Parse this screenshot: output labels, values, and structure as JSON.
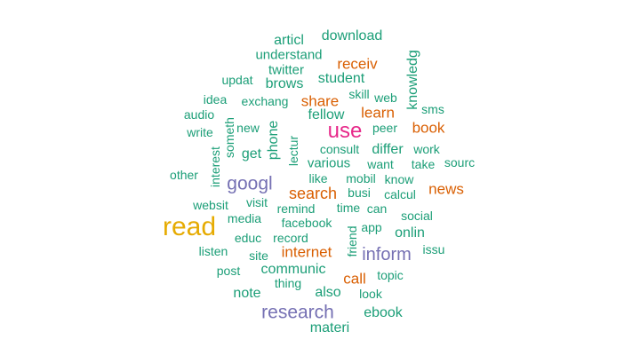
{
  "colors": {
    "teal": "#1b9e77",
    "orange": "#d95f02",
    "purple": "#7570b3",
    "magenta": "#e7298a",
    "green": "#66a61e",
    "gold": "#e6ab02"
  },
  "words": [
    {
      "text": "read",
      "color": "#e6ab02"
    },
    {
      "text": "use",
      "color": "#e7298a"
    },
    {
      "text": "googl",
      "color": "#7570b3"
    },
    {
      "text": "research",
      "color": "#7570b3"
    },
    {
      "text": "inform",
      "color": "#7570b3"
    },
    {
      "text": "search",
      "color": "#d95f02"
    },
    {
      "text": "internet",
      "color": "#d95f02"
    },
    {
      "text": "news",
      "color": "#d95f02"
    },
    {
      "text": "book",
      "color": "#d95f02"
    },
    {
      "text": "receiv",
      "color": "#d95f02"
    },
    {
      "text": "share",
      "color": "#d95f02"
    },
    {
      "text": "learn",
      "color": "#d95f02"
    },
    {
      "text": "call",
      "color": "#d95f02"
    },
    {
      "text": "articl",
      "color": "#1b9e77"
    },
    {
      "text": "download",
      "color": "#1b9e77"
    },
    {
      "text": "understand",
      "color": "#1b9e77"
    },
    {
      "text": "twitter",
      "color": "#1b9e77"
    },
    {
      "text": "updat",
      "color": "#1b9e77"
    },
    {
      "text": "brows",
      "color": "#1b9e77"
    },
    {
      "text": "student",
      "color": "#1b9e77"
    },
    {
      "text": "knowledg",
      "color": "#1b9e77"
    },
    {
      "text": "skill",
      "color": "#1b9e77"
    },
    {
      "text": "web",
      "color": "#1b9e77"
    },
    {
      "text": "idea",
      "color": "#1b9e77"
    },
    {
      "text": "exchang",
      "color": "#1b9e77"
    },
    {
      "text": "sms",
      "color": "#1b9e77"
    },
    {
      "text": "audio",
      "color": "#1b9e77"
    },
    {
      "text": "fellow",
      "color": "#1b9e77"
    },
    {
      "text": "peer",
      "color": "#1b9e77"
    },
    {
      "text": "write",
      "color": "#1b9e77"
    },
    {
      "text": "someth",
      "color": "#1b9e77"
    },
    {
      "text": "new",
      "color": "#1b9e77"
    },
    {
      "text": "phone",
      "color": "#1b9e77"
    },
    {
      "text": "lectur",
      "color": "#1b9e77"
    },
    {
      "text": "consult",
      "color": "#1b9e77"
    },
    {
      "text": "differ",
      "color": "#1b9e77"
    },
    {
      "text": "work",
      "color": "#1b9e77"
    },
    {
      "text": "interest",
      "color": "#1b9e77"
    },
    {
      "text": "get",
      "color": "#1b9e77"
    },
    {
      "text": "various",
      "color": "#1b9e77"
    },
    {
      "text": "want",
      "color": "#1b9e77"
    },
    {
      "text": "take",
      "color": "#1b9e77"
    },
    {
      "text": "sourc",
      "color": "#1b9e77"
    },
    {
      "text": "other",
      "color": "#1b9e77"
    },
    {
      "text": "like",
      "color": "#1b9e77"
    },
    {
      "text": "mobil",
      "color": "#1b9e77"
    },
    {
      "text": "know",
      "color": "#1b9e77"
    },
    {
      "text": "busi",
      "color": "#1b9e77"
    },
    {
      "text": "calcul",
      "color": "#1b9e77"
    },
    {
      "text": "websit",
      "color": "#1b9e77"
    },
    {
      "text": "visit",
      "color": "#1b9e77"
    },
    {
      "text": "remind",
      "color": "#1b9e77"
    },
    {
      "text": "time",
      "color": "#1b9e77"
    },
    {
      "text": "can",
      "color": "#1b9e77"
    },
    {
      "text": "media",
      "color": "#1b9e77"
    },
    {
      "text": "facebook",
      "color": "#1b9e77"
    },
    {
      "text": "social",
      "color": "#1b9e77"
    },
    {
      "text": "friend",
      "color": "#1b9e77"
    },
    {
      "text": "app",
      "color": "#1b9e77"
    },
    {
      "text": "educ",
      "color": "#1b9e77"
    },
    {
      "text": "record",
      "color": "#1b9e77"
    },
    {
      "text": "onlin",
      "color": "#1b9e77"
    },
    {
      "text": "listen",
      "color": "#1b9e77"
    },
    {
      "text": "site",
      "color": "#1b9e77"
    },
    {
      "text": "issu",
      "color": "#1b9e77"
    },
    {
      "text": "post",
      "color": "#1b9e77"
    },
    {
      "text": "communic",
      "color": "#1b9e77"
    },
    {
      "text": "topic",
      "color": "#1b9e77"
    },
    {
      "text": "thing",
      "color": "#1b9e77"
    },
    {
      "text": "note",
      "color": "#1b9e77"
    },
    {
      "text": "also",
      "color": "#1b9e77"
    },
    {
      "text": "look",
      "color": "#1b9e77"
    },
    {
      "text": "ebook",
      "color": "#1b9e77"
    },
    {
      "text": "materi",
      "color": "#1b9e77"
    }
  ]
}
